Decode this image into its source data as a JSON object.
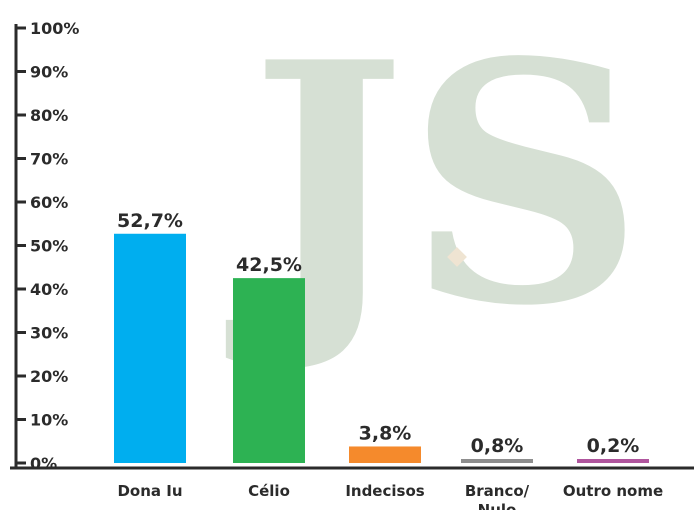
{
  "chart_data": {
    "type": "bar",
    "categories": [
      "Dona Iu",
      "Célio",
      "Indecisos",
      "Branco/\nNulo",
      "Outro nome"
    ],
    "values": [
      52.7,
      42.5,
      3.8,
      0.8,
      0.2
    ],
    "value_labels": [
      "52,7%",
      "42,5%",
      "3,8%",
      "0,8%",
      "0,2%"
    ],
    "bar_colors": [
      "#00aeef",
      "#2db253",
      "#f58a2c",
      "#8e8e8e",
      "#b0569e"
    ],
    "title": "",
    "xlabel": "",
    "ylabel": "",
    "ylim": [
      0,
      100
    ],
    "y_ticks": [
      0,
      10,
      20,
      30,
      40,
      50,
      60,
      70,
      80,
      90,
      100
    ],
    "y_tick_labels": [
      "0%",
      "10%",
      "20%",
      "30%",
      "40%",
      "50%",
      "60%",
      "70%",
      "80%",
      "90%",
      "100%"
    ],
    "grid": false,
    "legend": "none"
  },
  "watermark": {
    "text": "JS",
    "color": "#d6e0d4",
    "dot_color": "#efe4d2"
  }
}
